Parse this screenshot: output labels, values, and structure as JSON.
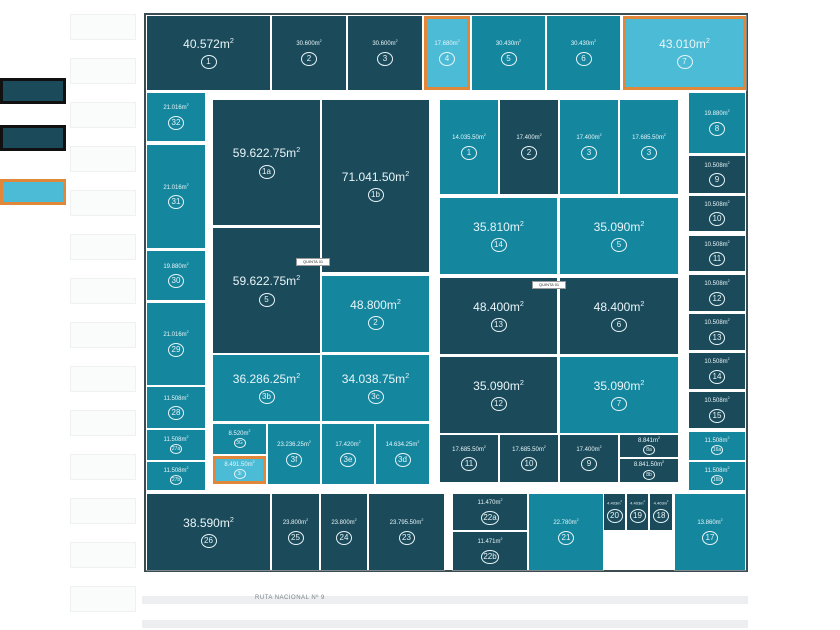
{
  "colors": {
    "dark": "#1b4b5b",
    "mid": "#14879f",
    "light": "#4cbcd6",
    "highlight": "#e0873a",
    "frame": "#3b4b52"
  },
  "legend": [
    {
      "tone": "dark"
    },
    {
      "tone": "dark"
    },
    {
      "tone": "light",
      "highlight": true
    }
  ],
  "road": {
    "label": "RUTA NACIONAL Nº 9"
  },
  "streets": [
    {
      "label": "QUINTA 01"
    },
    {
      "label": "QUINTA 01"
    }
  ],
  "lots": [
    {
      "area": "40.572",
      "num": "1",
      "tone": "dark"
    },
    {
      "area": "30.600",
      "num": "2",
      "tone": "dark"
    },
    {
      "area": "30.600",
      "num": "3",
      "tone": "dark"
    },
    {
      "area": "17.680",
      "num": "4",
      "tone": "light",
      "highlight": true
    },
    {
      "area": "30.430",
      "num": "5",
      "tone": "mid"
    },
    {
      "area": "30.430",
      "num": "6",
      "tone": "mid"
    },
    {
      "area": "43.010",
      "num": "7",
      "tone": "light",
      "highlight": true
    },
    {
      "area": "21.016",
      "num": "32",
      "tone": "mid"
    },
    {
      "area": "21.016",
      "num": "31",
      "tone": "mid"
    },
    {
      "area": "19.880",
      "num": "30",
      "tone": "mid"
    },
    {
      "area": "21.016",
      "num": "29",
      "tone": "mid"
    },
    {
      "area": "11.508",
      "num": "28",
      "tone": "mid"
    },
    {
      "area": "11.508",
      "num": "27a",
      "tone": "mid"
    },
    {
      "area": "11.508",
      "num": "27b",
      "tone": "mid"
    },
    {
      "area": "59.622.75",
      "num": "1a",
      "tone": "dark"
    },
    {
      "area": "71.041.50",
      "num": "1b",
      "tone": "dark"
    },
    {
      "area": "59.622.75",
      "num": "5",
      "tone": "dark"
    },
    {
      "area": "48.800",
      "num": "2",
      "tone": "mid"
    },
    {
      "area": "36.286.25",
      "num": "3b",
      "tone": "mid"
    },
    {
      "area": "34.038.75",
      "num": "3c",
      "tone": "mid"
    },
    {
      "area": "8.520",
      "num": "3G",
      "tone": "mid"
    },
    {
      "area": "8.491.50",
      "num": "3i",
      "tone": "light",
      "highlight": true
    },
    {
      "area": "23.236.25",
      "num": "3f",
      "tone": "mid"
    },
    {
      "area": "17.420",
      "num": "3e",
      "tone": "mid"
    },
    {
      "area": "14.634.25",
      "num": "3d",
      "tone": "mid"
    },
    {
      "area": "14.035.50",
      "num": "1",
      "tone": "mid"
    },
    {
      "area": "17.400",
      "num": "2",
      "tone": "dark"
    },
    {
      "area": "17.400",
      "num": "3",
      "tone": "mid"
    },
    {
      "area": "17.685.50",
      "num": "3",
      "tone": "mid"
    },
    {
      "area": "35.810",
      "num": "14",
      "tone": "mid"
    },
    {
      "area": "35.090",
      "num": "5",
      "tone": "mid"
    },
    {
      "area": "48.400",
      "num": "13",
      "tone": "dark"
    },
    {
      "area": "48.400",
      "num": "6",
      "tone": "dark"
    },
    {
      "area": "35.090",
      "num": "12",
      "tone": "dark"
    },
    {
      "area": "35.090",
      "num": "7",
      "tone": "mid"
    },
    {
      "area": "17.685.50",
      "num": "11",
      "tone": "dark"
    },
    {
      "area": "17.685.50",
      "num": "10",
      "tone": "dark"
    },
    {
      "area": "17.400",
      "num": "9",
      "tone": "dark"
    },
    {
      "area": "8.841",
      "num": "8a",
      "tone": "dark"
    },
    {
      "area": "8.841.50",
      "num": "8b",
      "tone": "dark"
    },
    {
      "area": "19.880",
      "num": "8",
      "tone": "mid"
    },
    {
      "area": "10.508",
      "num": "9",
      "tone": "dark"
    },
    {
      "area": "10.508",
      "num": "10",
      "tone": "dark"
    },
    {
      "area": "10.508",
      "num": "11",
      "tone": "dark"
    },
    {
      "area": "10.508",
      "num": "12",
      "tone": "dark"
    },
    {
      "area": "10.508",
      "num": "13",
      "tone": "dark"
    },
    {
      "area": "10.508",
      "num": "14",
      "tone": "dark"
    },
    {
      "area": "10.508",
      "num": "15",
      "tone": "dark"
    },
    {
      "area": "11.508",
      "num": "16a",
      "tone": "mid"
    },
    {
      "area": "11.508",
      "num": "16b",
      "tone": "mid"
    },
    {
      "area": "38.590",
      "num": "26",
      "tone": "dark"
    },
    {
      "area": "23.800",
      "num": "25",
      "tone": "dark"
    },
    {
      "area": "23.800",
      "num": "24",
      "tone": "dark"
    },
    {
      "area": "23.795.50",
      "num": "23",
      "tone": "dark"
    },
    {
      "area": "11.470",
      "num": "22a",
      "tone": "dark"
    },
    {
      "area": "11.471",
      "num": "22b",
      "tone": "dark"
    },
    {
      "area": "22.780",
      "num": "21",
      "tone": "mid"
    },
    {
      "area": "4.403",
      "num": "20",
      "tone": "dark"
    },
    {
      "area": "4.403",
      "num": "19",
      "tone": "dark"
    },
    {
      "area": "4.403",
      "num": "18",
      "tone": "dark"
    },
    {
      "area": "13.860",
      "num": "17",
      "tone": "mid"
    }
  ],
  "unit": "m",
  "unit_sup": "2"
}
